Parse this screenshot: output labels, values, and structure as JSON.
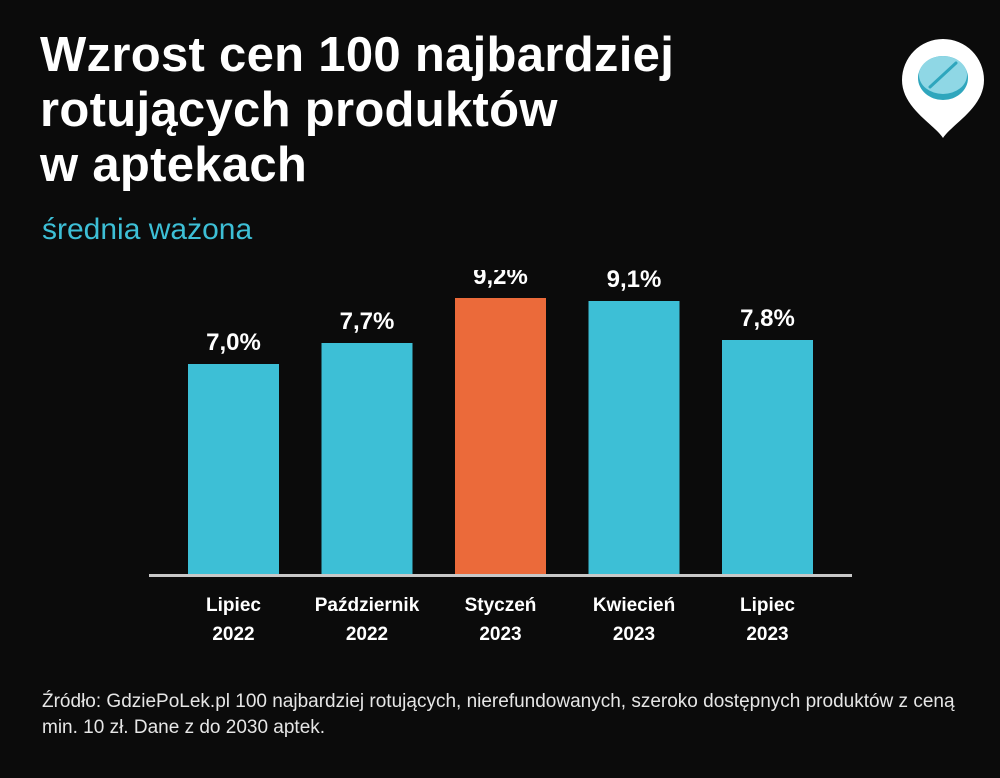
{
  "title_lines": [
    "Wzrost cen 100 najbardziej",
    "rotujących produktów",
    "w aptekach"
  ],
  "subtitle": "średnia ważona",
  "source": "Źródło: GdziePoLek.pl 100 najbardziej rotujących, nierefundowanych, szeroko dostępnych produktów z ceną min. 10 zł. Dane z do 2030 aptek.",
  "logo_icon": "pill-map-pin-icon",
  "colors": {
    "background": "#0b0b0b",
    "bar": "#3dbfd6",
    "bar_highlight": "#eb6a3a",
    "axis": "#c8c8c8",
    "text": "#ffffff"
  },
  "chart_data": {
    "type": "bar",
    "title": "Wzrost cen 100 najbardziej rotujących produktów w aptekach",
    "subtitle": "średnia ważona",
    "categories": [
      [
        "Lipiec",
        "2022"
      ],
      [
        "Październik",
        "2022"
      ],
      [
        "Styczeń",
        "2023"
      ],
      [
        "Kwiecień",
        "2023"
      ],
      [
        "Lipiec",
        "2023"
      ]
    ],
    "values": [
      7.0,
      7.7,
      9.2,
      9.1,
      7.8
    ],
    "data_labels": [
      "7,0%",
      "7,7%",
      "9,2%",
      "9,1%",
      "7,8%"
    ],
    "highlight_index": 2,
    "xlabel": "",
    "ylabel": "",
    "ylim": [
      0,
      9.8
    ],
    "grid": false,
    "legend": "none"
  }
}
